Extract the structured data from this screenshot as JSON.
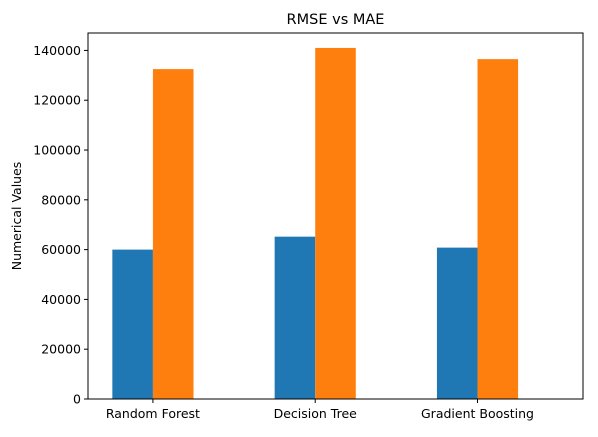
{
  "chart_data": {
    "type": "bar",
    "title": "RMSE vs MAE",
    "xlabel": "",
    "ylabel": "Numerical Values",
    "categories": [
      "Random Forest",
      "Decision Tree",
      "Gradient Boosting"
    ],
    "series": [
      {
        "color": "#1f77b4",
        "values": [
          60000,
          65200,
          60800
        ]
      },
      {
        "color": "#ff7f0e",
        "values": [
          132500,
          141000,
          136500
        ]
      }
    ],
    "ylim": [
      0,
      147000
    ],
    "yticks": [
      0,
      20000,
      40000,
      60000,
      80000,
      100000,
      120000,
      140000
    ],
    "ytick_labels": [
      "0",
      "20000",
      "40000",
      "60000",
      "80000",
      "100000",
      "120000",
      "140000"
    ],
    "grid": false,
    "legend": "none"
  }
}
